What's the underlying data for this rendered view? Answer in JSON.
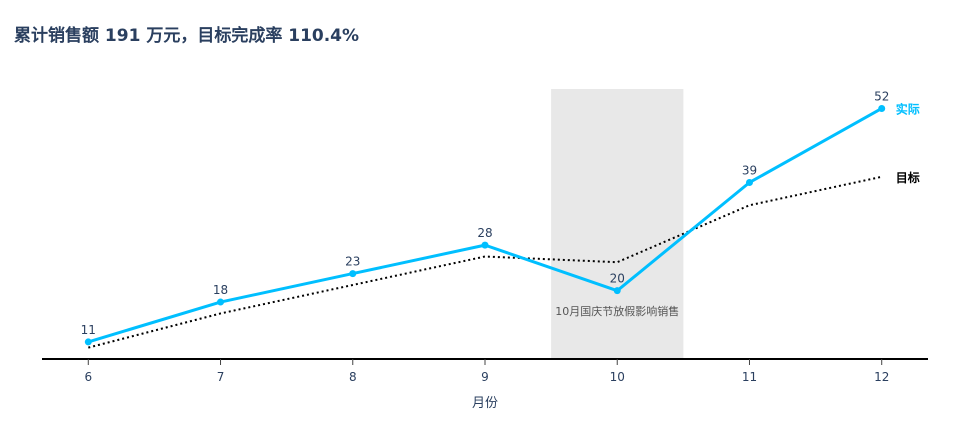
{
  "chart_data": {
    "type": "line",
    "title": "累计销售额 191 万元，目标完成率 110.4%",
    "xlabel": "月份",
    "ylabel": "",
    "x": [
      6,
      7,
      8,
      9,
      10,
      11,
      12
    ],
    "x_tick_labels": [
      "6",
      "7",
      "8",
      "9",
      "10",
      "11",
      "12"
    ],
    "xlim": [
      5.65,
      12.35
    ],
    "ylim": [
      8,
      57
    ],
    "grid": false,
    "series": [
      {
        "name": "实际",
        "values": [
          11,
          18,
          23,
          28,
          20,
          39,
          52
        ],
        "color": "#00bfff",
        "style": "solid",
        "markers": true,
        "data_labels": [
          "11",
          "18",
          "23",
          "28",
          "20",
          "39",
          "52"
        ]
      },
      {
        "name": "目标",
        "values": [
          10,
          16,
          21,
          26,
          25,
          35,
          40
        ],
        "color": "#000000",
        "style": "dotted",
        "markers": false
      }
    ],
    "annotations": [
      {
        "type": "band",
        "x_start": 9.5,
        "x_end": 10.5,
        "color": "#e8e8e8",
        "text": "10月国庆节放假影响销售"
      }
    ]
  }
}
